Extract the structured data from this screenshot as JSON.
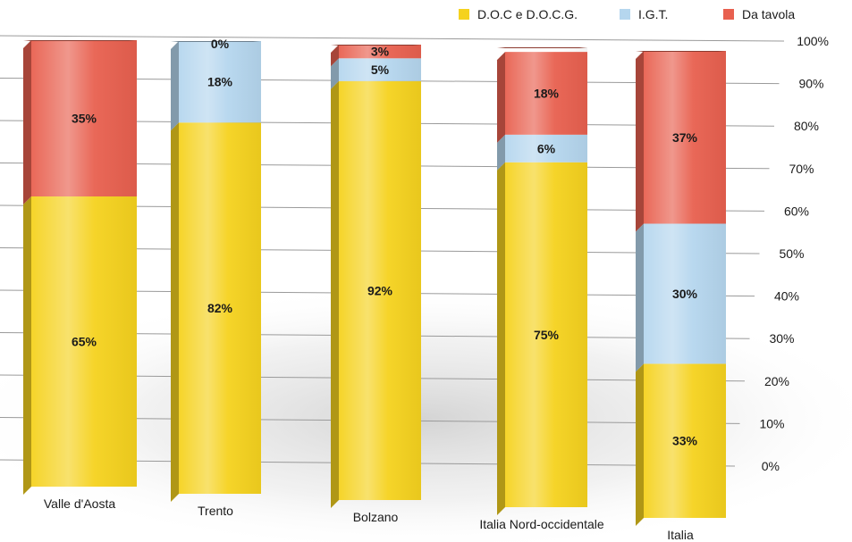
{
  "chart_data": {
    "type": "bar",
    "stacked": true,
    "categories": [
      "Valle d'Aosta",
      "Trento",
      "Bolzano",
      "Italia Nord-occidentale",
      "Italia"
    ],
    "series": [
      {
        "name": "D.O.C e D.O.C.G.",
        "color": "#F5D21E",
        "values": [
          65,
          82,
          92,
          75,
          33
        ]
      },
      {
        "name": "I.G.T.",
        "color": "#B5D6EE",
        "values": [
          0,
          18,
          5,
          6,
          30
        ]
      },
      {
        "name": "Da tavola",
        "color": "#E8604F",
        "values": [
          35,
          0,
          3,
          18,
          37
        ]
      }
    ],
    "segment_labels": [
      [
        "65%",
        "",
        "35%"
      ],
      [
        "82%",
        "18%",
        "0%"
      ],
      [
        "92%",
        "5%",
        "3%"
      ],
      [
        "75%",
        "6%",
        "18%"
      ],
      [
        "33%",
        "30%",
        "37%"
      ]
    ],
    "y_ticks": [
      "0%",
      "10%",
      "20%",
      "30%",
      "40%",
      "50%",
      "60%",
      "70%",
      "80%",
      "90%",
      "100%"
    ],
    "ylim": [
      0,
      100
    ],
    "grid": true,
    "legend_position": "top-right"
  }
}
